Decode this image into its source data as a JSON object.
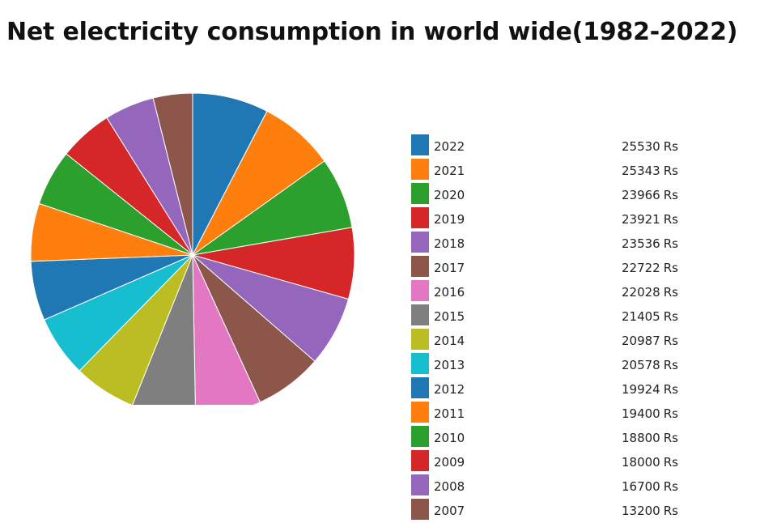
{
  "chart_data": {
    "type": "pie",
    "title": "Net electricity consumption in world wide(1982-2022)",
    "unit": "Rs",
    "colors": [
      "#1f77b4",
      "#ff7f0e",
      "#2ca02c",
      "#d62728",
      "#9467bd",
      "#8c564b",
      "#e377c2",
      "#7f7f7f",
      "#bcbd22",
      "#17becf"
    ],
    "slices": [
      {
        "label": "2022",
        "value": 25530
      },
      {
        "label": "2021",
        "value": 25343
      },
      {
        "label": "2020",
        "value": 23966
      },
      {
        "label": "2019",
        "value": 23921
      },
      {
        "label": "2018",
        "value": 23536
      },
      {
        "label": "2017",
        "value": 22722
      },
      {
        "label": "2016",
        "value": 22028
      },
      {
        "label": "2015",
        "value": 21405
      },
      {
        "label": "2014",
        "value": 20987
      },
      {
        "label": "2013",
        "value": 20578
      },
      {
        "label": "2012",
        "value": 19924
      },
      {
        "label": "2011",
        "value": 19400
      },
      {
        "label": "2010",
        "value": 18800
      },
      {
        "label": "2009",
        "value": 18000
      },
      {
        "label": "2008",
        "value": 16700
      },
      {
        "label": "2007",
        "value": 13200
      }
    ]
  }
}
